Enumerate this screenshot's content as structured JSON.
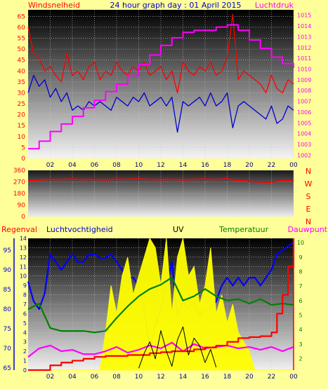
{
  "header": {
    "title": "24 hour graph day : 01 April 2015",
    "left_label": "Windsnelheid",
    "right_label": "Luchtdruk"
  },
  "bottom_header": {
    "regenval": "Regenval",
    "luchtvochtigheid": "Luchtvochtigheid",
    "uv": "UV",
    "temperatuur": "Temperatuur",
    "dauwpunt": "Dauwpunt"
  },
  "compass": [
    "N",
    "W",
    "S",
    "E",
    "N"
  ],
  "colors": {
    "background": "#ffff99",
    "wind": "#ff0000",
    "wind_avg": "#0000cc",
    "pressure": "#ff00ff",
    "direction": "#ff0000",
    "humidity": "#0000ff",
    "uv": "#ffff00",
    "temperature": "#008000",
    "dewpoint": "#ff00ff",
    "rain": "#ff0000",
    "solar": "#000000"
  },
  "chart_data": [
    {
      "type": "line",
      "x_ticks": [
        "02",
        "04",
        "06",
        "08",
        "10",
        "12",
        "14",
        "16",
        "18",
        "20",
        "22",
        "00"
      ],
      "xlim": [
        0,
        24
      ],
      "y_left": {
        "ticks": [
          0,
          5,
          10,
          15,
          20,
          25,
          30,
          35,
          40,
          45,
          50,
          55,
          60,
          65
        ],
        "ylim": [
          0,
          68
        ]
      },
      "y_right": {
        "ticks": [
          1002,
          1003,
          1004,
          1005,
          1006,
          1007,
          1008,
          1009,
          1010,
          1011,
          1012,
          1013,
          1014,
          1015
        ],
        "ylim": [
          1001.7,
          1015.5
        ]
      },
      "series": [
        {
          "name": "Windsnelheid",
          "axis": "left",
          "color": "#ff0000",
          "x": [
            0,
            0.5,
            1,
            1.5,
            2,
            2.5,
            3,
            3.5,
            4,
            4.5,
            5,
            5.5,
            6,
            6.5,
            7,
            7.5,
            8,
            8.5,
            9,
            9.5,
            10,
            10.5,
            11,
            11.5,
            12,
            12.5,
            13,
            13.5,
            14,
            14.5,
            15,
            15.5,
            16,
            16.5,
            17,
            17.5,
            18,
            18.5,
            19,
            19.5,
            20,
            20.5,
            21,
            21.5,
            22,
            22.5,
            23,
            23.5,
            24
          ],
          "y": [
            60,
            48,
            46,
            40,
            42,
            38,
            35,
            48,
            38,
            40,
            36,
            42,
            44,
            36,
            40,
            38,
            44,
            40,
            38,
            42,
            40,
            44,
            38,
            40,
            42,
            36,
            40,
            30,
            44,
            40,
            38,
            42,
            40,
            44,
            38,
            40,
            46,
            66,
            36,
            40,
            38,
            36,
            34,
            30,
            38,
            32,
            30,
            36,
            34
          ]
        },
        {
          "name": "Gemiddelde wind",
          "axis": "left",
          "color": "#0000cc",
          "x": [
            0,
            0.5,
            1,
            1.5,
            2,
            2.5,
            3,
            3.5,
            4,
            4.5,
            5,
            5.5,
            6,
            6.5,
            7,
            7.5,
            8,
            8.5,
            9,
            9.5,
            10,
            10.5,
            11,
            11.5,
            12,
            12.5,
            13,
            13.5,
            14,
            14.5,
            15,
            15.5,
            16,
            16.5,
            17,
            17.5,
            18,
            18.5,
            19,
            19.5,
            20,
            20.5,
            21,
            21.5,
            22,
            22.5,
            23,
            23.5,
            24
          ],
          "y": [
            30,
            38,
            33,
            36,
            28,
            32,
            26,
            30,
            22,
            24,
            22,
            26,
            24,
            26,
            24,
            22,
            28,
            26,
            24,
            28,
            26,
            30,
            24,
            26,
            28,
            24,
            28,
            12,
            26,
            24,
            26,
            28,
            24,
            30,
            24,
            26,
            30,
            14,
            24,
            26,
            24,
            22,
            20,
            18,
            24,
            16,
            18,
            24,
            22
          ]
        },
        {
          "name": "Luchtdruk",
          "axis": "right",
          "color": "#ff00ff",
          "x": [
            0,
            1,
            2,
            3,
            4,
            5,
            6,
            7,
            8,
            9,
            10,
            11,
            12,
            13,
            14,
            15,
            16,
            17,
            18,
            19,
            20,
            21,
            22,
            23,
            24
          ],
          "y": [
            1002.6,
            1003.3,
            1004.2,
            1004.9,
            1005.6,
            1006.4,
            1007.1,
            1007.9,
            1008.6,
            1009.4,
            1010.4,
            1011.3,
            1012.2,
            1012.9,
            1013.4,
            1013.6,
            1013.6,
            1013.9,
            1014.1,
            1013.6,
            1012.7,
            1011.9,
            1011.1,
            1010.5,
            1010.1
          ]
        }
      ]
    },
    {
      "type": "line",
      "x_ticks": [
        "02",
        "04",
        "06",
        "08",
        "10",
        "12",
        "14",
        "16",
        "18",
        "20",
        "22",
        "00"
      ],
      "xlim": [
        0,
        24
      ],
      "y_left": {
        "ticks": [
          0,
          90,
          180,
          270,
          360
        ],
        "ylim": [
          0,
          360
        ]
      },
      "series": [
        {
          "name": "Windrichting",
          "axis": "left",
          "color": "#ff0000",
          "x": [
            0,
            1,
            2,
            3,
            4,
            5,
            6,
            7,
            8,
            9,
            10,
            11,
            12,
            13,
            14,
            15,
            16,
            17,
            18,
            19,
            20,
            21,
            22,
            23,
            24
          ],
          "y": [
            280,
            285,
            290,
            288,
            292,
            287,
            290,
            286,
            291,
            289,
            293,
            288,
            287,
            290,
            286,
            289,
            292,
            288,
            294,
            280,
            275,
            270,
            268,
            282,
            276
          ]
        }
      ]
    },
    {
      "type": "line",
      "x_ticks": [
        "02",
        "04",
        "06",
        "08",
        "10",
        "12",
        "14",
        "16",
        "18",
        "20",
        "22",
        "00"
      ],
      "xlim": [
        0,
        24
      ],
      "y_left_rain": {
        "ticks": [
          0,
          1,
          2,
          3,
          4,
          5,
          6,
          7,
          8,
          9,
          10,
          11,
          12,
          13,
          14
        ],
        "ylim": [
          0,
          14
        ]
      },
      "y_left_humidity": {
        "ticks": [
          65,
          70,
          75,
          80,
          85,
          90,
          95
        ],
        "ylim": [
          64.5,
          98
        ]
      },
      "y_right": {
        "ticks": [
          2,
          3,
          4,
          5,
          6,
          7,
          8,
          9,
          10
        ],
        "ylim": [
          1.2,
          10.3
        ]
      },
      "series": [
        {
          "name": "Luchtvochtigheid",
          "axis": "humidity",
          "color": "#0000ff",
          "x": [
            0,
            0.5,
            1,
            1.5,
            2,
            2.5,
            3,
            3.5,
            4,
            4.5,
            5,
            5.5,
            6,
            6.5,
            7,
            7.5,
            8,
            8.5,
            9,
            9.5,
            10,
            10.5,
            11,
            11.5,
            12,
            12.5,
            13,
            13.5,
            14,
            14.5,
            15,
            15.5,
            16,
            16.5,
            17,
            17.5,
            18,
            18.5,
            19,
            19.5,
            20,
            20.5,
            21,
            21.5,
            22,
            22.5,
            23,
            23.5,
            24
          ],
          "y": [
            87,
            82,
            80,
            84,
            94,
            92,
            90,
            92,
            94,
            92,
            92,
            94,
            94,
            93,
            93,
            94,
            92,
            90,
            88,
            88,
            86,
            80,
            70,
            76,
            80,
            86,
            92,
            78,
            82,
            80,
            82,
            78,
            80,
            80,
            82,
            86,
            88,
            86,
            88,
            86,
            88,
            88,
            86,
            88,
            90,
            94,
            95,
            96,
            97
          ]
        },
        {
          "name": "UV",
          "axis": "rain",
          "color": "#ffff00",
          "x": [
            0,
            6.5,
            7,
            7.5,
            8,
            8.5,
            9,
            9.5,
            10,
            10.5,
            11,
            11.5,
            12,
            12.5,
            13,
            13.5,
            14,
            14.5,
            15,
            15.5,
            16,
            16.5,
            17,
            17.5,
            18,
            18.5,
            19,
            19.5,
            20,
            20.5,
            24
          ],
          "y": [
            0,
            0,
            4,
            9,
            6,
            10,
            12,
            8,
            10,
            12,
            14,
            13,
            9,
            14,
            6,
            12,
            14,
            10,
            11,
            7,
            9,
            13,
            6,
            8,
            5,
            7,
            4,
            3,
            2,
            0,
            0
          ]
        },
        {
          "name": "Temperatuur",
          "axis": "right",
          "color": "#008000",
          "x": [
            0,
            1,
            2,
            3,
            4,
            5,
            6,
            7,
            8,
            9,
            10,
            11,
            12,
            13,
            14,
            15,
            16,
            17,
            18,
            19,
            20,
            21,
            22,
            23,
            24
          ],
          "y": [
            5.4,
            5.8,
            4.1,
            3.9,
            3.9,
            3.9,
            3.8,
            3.9,
            4.8,
            5.6,
            6.3,
            6.8,
            7.1,
            7.6,
            6.0,
            6.3,
            6.8,
            6.3,
            6.0,
            6.1,
            5.8,
            6.1,
            5.7,
            5.8,
            5.7
          ]
        },
        {
          "name": "Dauwpunt",
          "axis": "right",
          "color": "#ff00ff",
          "x": [
            0,
            1,
            2,
            3,
            4,
            5,
            6,
            7,
            8,
            9,
            10,
            11,
            12,
            13,
            14,
            15,
            16,
            17,
            18,
            19,
            20,
            21,
            22,
            23,
            24
          ],
          "y": [
            2.1,
            2.7,
            2.9,
            2.5,
            2.6,
            2.3,
            2.3,
            2.5,
            2.8,
            2.4,
            2.6,
            2.9,
            2.7,
            3.1,
            2.5,
            3.0,
            2.7,
            2.8,
            2.9,
            2.7,
            2.8,
            2.6,
            2.8,
            2.5,
            2.8
          ]
        },
        {
          "name": "Regenval",
          "axis": "rain",
          "color": "#ff0000",
          "x": [
            0,
            1,
            2,
            3,
            4,
            5,
            6,
            7,
            8,
            9,
            10,
            11,
            12,
            13,
            14,
            15,
            16,
            17,
            18,
            19,
            20,
            21,
            22,
            22.5,
            23,
            23.5,
            24
          ],
          "y": [
            0,
            0,
            0.5,
            0.8,
            1.0,
            1.2,
            1.4,
            1.5,
            1.5,
            1.6,
            1.6,
            1.8,
            1.9,
            2.0,
            2.0,
            2.2,
            2.4,
            2.6,
            3.0,
            3.4,
            3.5,
            3.6,
            4.0,
            6.0,
            8.0,
            11.0,
            14.0
          ]
        },
        {
          "name": "Zonnestraling",
          "axis": "rain",
          "color": "#000000",
          "x": [
            10,
            10.5,
            11,
            11.5,
            12,
            12.5,
            13,
            13.5,
            14,
            14.5,
            15,
            15.5,
            16,
            16.5,
            17
          ],
          "y": [
            0.2,
            1.8,
            3.0,
            1.2,
            4.2,
            2.0,
            0.4,
            3.2,
            4.6,
            1.6,
            3.4,
            2.6,
            0.8,
            2.2,
            0.3
          ]
        }
      ]
    }
  ]
}
